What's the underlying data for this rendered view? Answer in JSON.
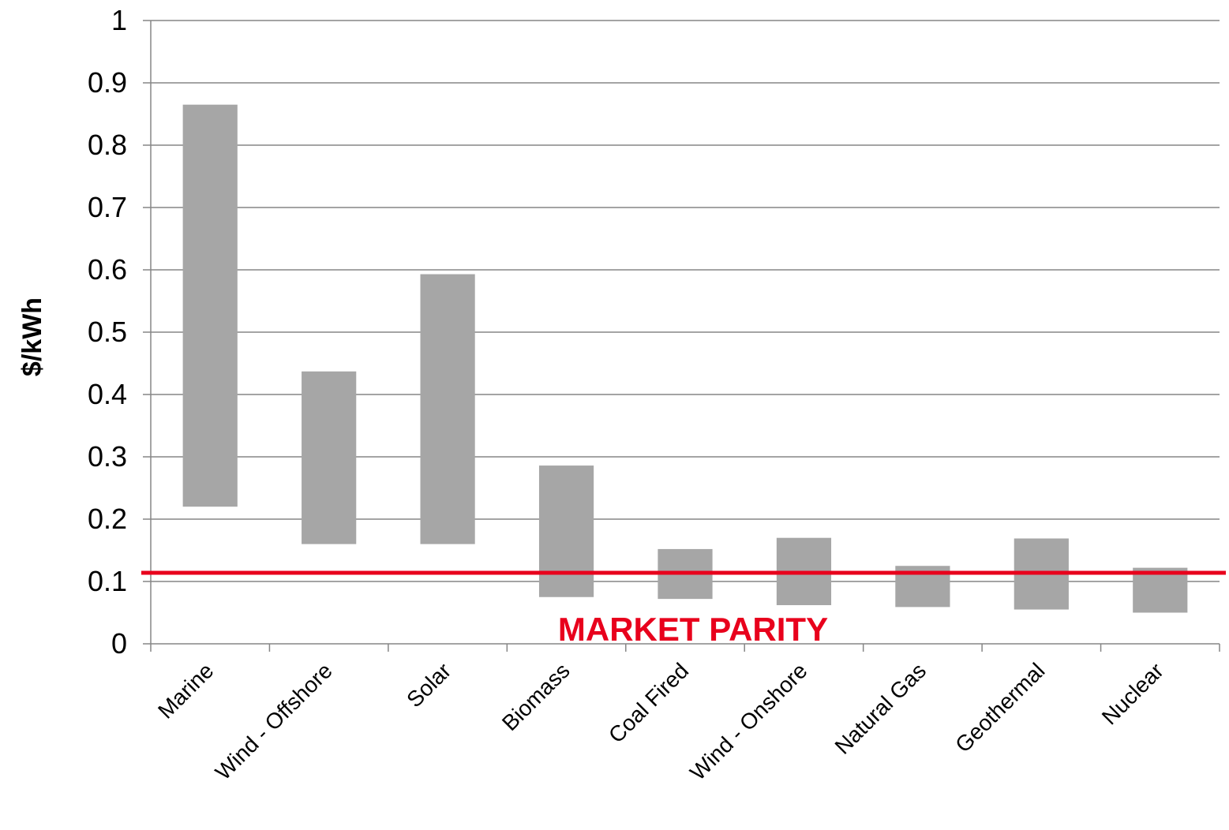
{
  "chart_data": {
    "type": "bar",
    "subtype": "floating-range",
    "title": "",
    "xlabel": "",
    "ylabel": "$/kWh",
    "ylim": [
      0,
      1
    ],
    "yticks": [
      "0",
      "0.1",
      "0.2",
      "0.3",
      "0.4",
      "0.5",
      "0.6",
      "0.7",
      "0.8",
      "0.9",
      "1"
    ],
    "grid": true,
    "legend": "none",
    "categories": [
      "Marine",
      "Wind - Offshore",
      "Solar",
      "Biomass",
      "Coal Fired",
      "Wind - Onshore",
      "Natural Gas",
      "Geothermal",
      "Nuclear"
    ],
    "ranges": [
      {
        "low": 0.22,
        "high": 0.865
      },
      {
        "low": 0.16,
        "high": 0.437
      },
      {
        "low": 0.16,
        "high": 0.593
      },
      {
        "low": 0.075,
        "high": 0.286
      },
      {
        "low": 0.072,
        "high": 0.152
      },
      {
        "low": 0.062,
        "high": 0.17
      },
      {
        "low": 0.059,
        "high": 0.125
      },
      {
        "low": 0.055,
        "high": 0.169
      },
      {
        "low": 0.05,
        "high": 0.122
      }
    ],
    "reference_line": {
      "value": 0.114,
      "label": "MARKET PARITY",
      "color": "#e8001c"
    },
    "bar_color": "#a6a6a6",
    "grid_color": "#868686",
    "axis_color": "#868686"
  }
}
